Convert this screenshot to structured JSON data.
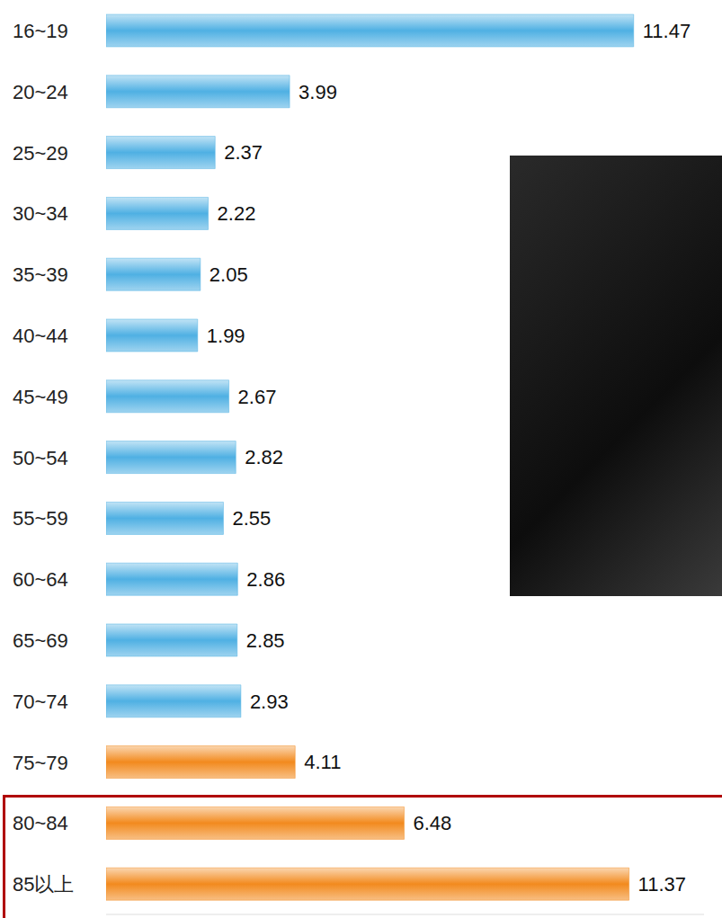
{
  "chart_data": {
    "type": "bar",
    "orientation": "horizontal",
    "categories": [
      "16~19",
      "20~24",
      "25~29",
      "30~34",
      "35~39",
      "40~44",
      "45~49",
      "50~54",
      "55~59",
      "60~64",
      "65~69",
      "70~74",
      "75~79",
      "80~84",
      "85以上"
    ],
    "values": [
      11.47,
      3.99,
      2.37,
      2.22,
      2.05,
      1.99,
      2.67,
      2.82,
      2.55,
      2.86,
      2.85,
      2.93,
      4.11,
      6.48,
      11.37
    ],
    "colors": [
      "#4fb0e3",
      "#4fb0e3",
      "#4fb0e3",
      "#4fb0e3",
      "#4fb0e3",
      "#4fb0e3",
      "#4fb0e3",
      "#4fb0e3",
      "#4fb0e3",
      "#4fb0e3",
      "#4fb0e3",
      "#4fb0e3",
      "#f28a1e",
      "#f28a1e",
      "#f28a1e"
    ],
    "xlim": [
      0,
      13
    ],
    "data_labels": true,
    "tick_labels": "y",
    "grid": false
  }
}
